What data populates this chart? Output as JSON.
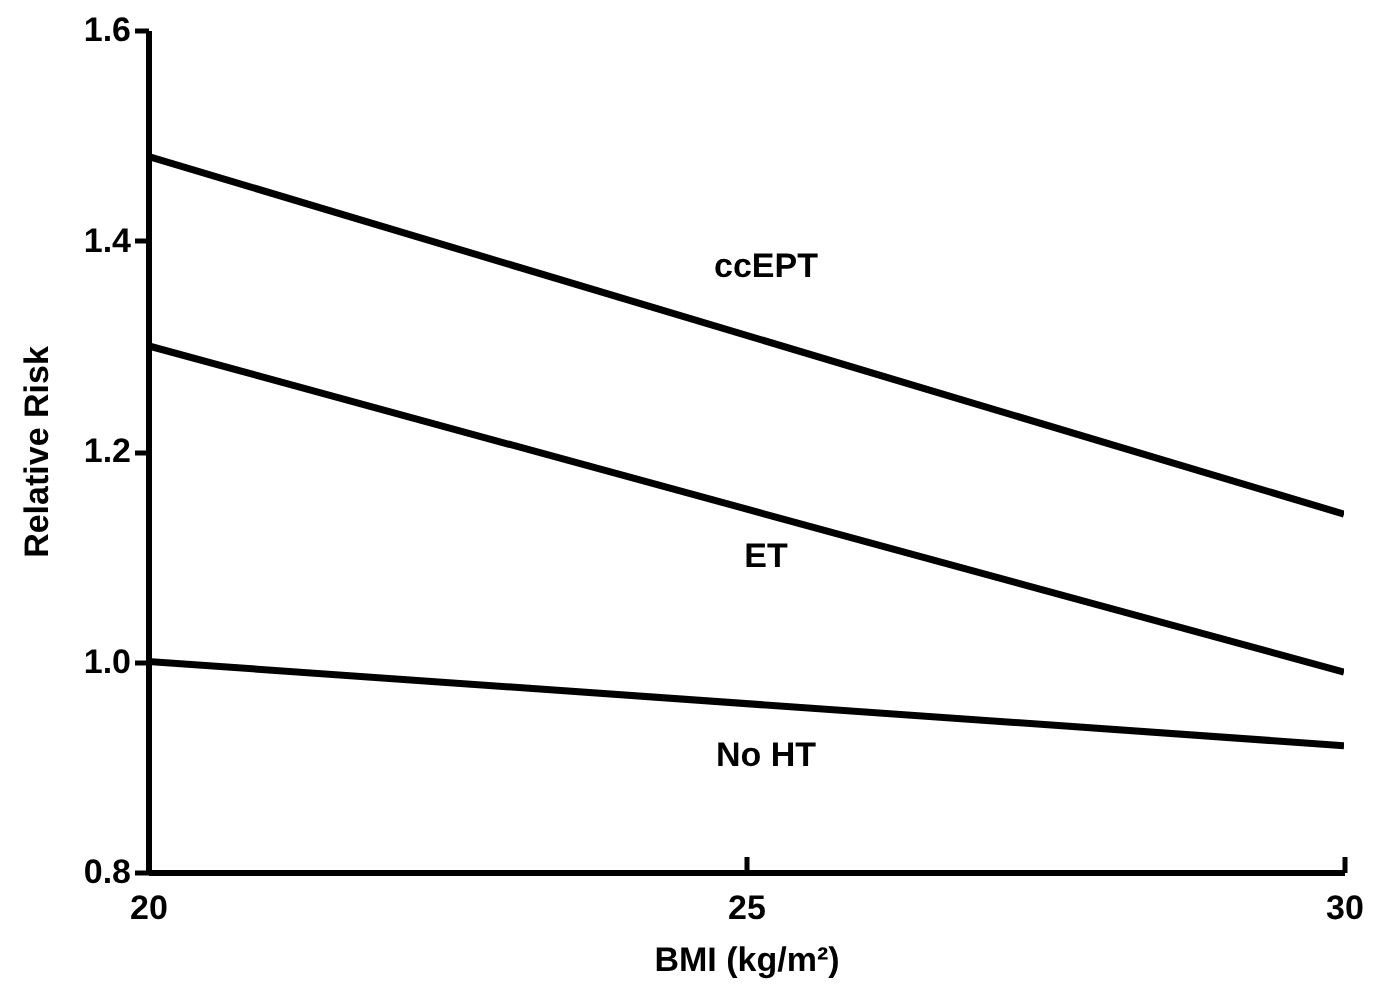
{
  "chart_data": {
    "type": "line",
    "xlabel": "BMI (kg/m²)",
    "ylabel": "Relative Risk",
    "x": [
      20,
      30
    ],
    "series": [
      {
        "name": "ccEPT",
        "color": "#000000",
        "values": [
          1.48,
          1.14
        ]
      },
      {
        "name": "ET",
        "color": "#000000",
        "values": [
          1.3,
          0.99
        ]
      },
      {
        "name": "No HT",
        "color": "#000000",
        "values": [
          1.0,
          0.92
        ]
      }
    ],
    "xlim": [
      20,
      30
    ],
    "xticks": [
      20,
      25,
      30
    ],
    "ylim": [
      0.8,
      1.6
    ],
    "yticks": [
      {
        "value": 0.8,
        "label": "0.8"
      },
      {
        "value": 1.0,
        "label": "1.0"
      },
      {
        "value": 1.2,
        "label": "1.2"
      },
      {
        "value": 1.4,
        "label": "1.4"
      },
      {
        "value": 1.6,
        "label": "1.6"
      }
    ]
  }
}
